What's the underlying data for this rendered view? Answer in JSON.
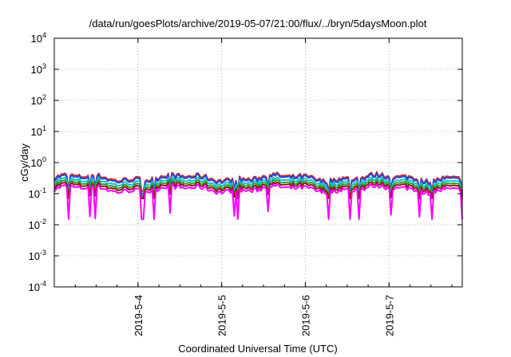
{
  "chart_data": {
    "type": "line",
    "title": "/data/run/goesPlots/archive/2019-05-07/21:00/flux/../bryn/5daysMoon.plot",
    "xlabel": "Coordinated Universal Time (UTC)",
    "ylabel": "cGy/day",
    "yscale": "log",
    "ylim": [
      0.0001,
      10000
    ],
    "xlim": [
      "2019-05-03 00:00",
      "2019-05-07 21:00"
    ],
    "grid": true,
    "y_ticks": [
      {
        "base": "10",
        "exp": "-4",
        "value": 0.0001
      },
      {
        "base": "10",
        "exp": "-3",
        "value": 0.001
      },
      {
        "base": "10",
        "exp": "-2",
        "value": 0.01
      },
      {
        "base": "10",
        "exp": "-1",
        "value": 0.1
      },
      {
        "base": "10",
        "exp": "0",
        "value": 1
      },
      {
        "base": "10",
        "exp": "1",
        "value": 10
      },
      {
        "base": "10",
        "exp": "2",
        "value": 100
      },
      {
        "base": "10",
        "exp": "3",
        "value": 1000
      },
      {
        "base": "10",
        "exp": "4",
        "value": 10000
      }
    ],
    "x_ticks": [
      "2019-5-4",
      "2019-5-5",
      "2019-5-6",
      "2019-5-7"
    ],
    "series": [
      {
        "color": "#d62728",
        "typical": 0.33,
        "min": 0.12,
        "max": 0.5
      },
      {
        "color": "#1f4fd6",
        "typical": 0.3,
        "min": 0.1,
        "max": 0.45
      },
      {
        "color": "#17becf",
        "typical": 0.24,
        "min": 0.09,
        "max": 0.33
      },
      {
        "color": "#2ca02c",
        "typical": 0.2,
        "min": 0.08,
        "max": 0.28
      },
      {
        "color": "#8b1a1a",
        "typical": 0.17,
        "min": 0.07,
        "max": 0.23
      },
      {
        "color": "#ff00ff",
        "typical": 0.14,
        "min": 0.015,
        "max": 0.2
      }
    ]
  }
}
